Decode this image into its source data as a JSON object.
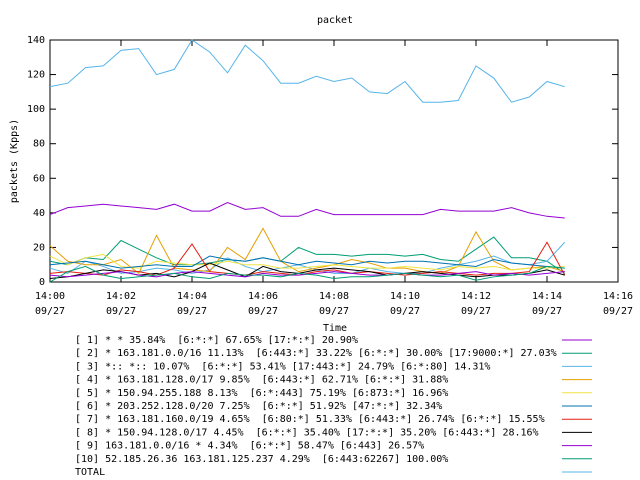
{
  "chart_data": {
    "type": "line",
    "title": "packet",
    "x_label": "Time",
    "y_label": "packets (Kpps)",
    "x": [
      0,
      0.5,
      1,
      1.5,
      2,
      2.5,
      3,
      3.5,
      4,
      4.5,
      5,
      5.5,
      6,
      6.5,
      7,
      7.5,
      8,
      8.5,
      9,
      9.5,
      10,
      10.5,
      11,
      11.5,
      12,
      12.5,
      13,
      13.5,
      14,
      14.5
    ],
    "xlim": [
      0,
      16
    ],
    "xticks": [
      {
        "value": 0,
        "label": "14:00\n09/27"
      },
      {
        "value": 2,
        "label": "14:02\n09/27"
      },
      {
        "value": 4,
        "label": "14:04\n09/27"
      },
      {
        "value": 6,
        "label": "14:06\n09/27"
      },
      {
        "value": 8,
        "label": "14:08\n09/27"
      },
      {
        "value": 10,
        "label": "14:10\n09/27"
      },
      {
        "value": 12,
        "label": "14:12\n09/27"
      },
      {
        "value": 14,
        "label": "14:14\n09/27"
      },
      {
        "value": 16,
        "label": "14:16\n09/27"
      }
    ],
    "ylim": [
      0,
      140
    ],
    "yticks": [
      0,
      20,
      40,
      60,
      80,
      100,
      120,
      140
    ],
    "series": [
      {
        "name": "[ 1] * * 35.84%  [6:*:*] 67.65% [17:*:*] 20.90%",
        "color": "#9400d3",
        "values": [
          39,
          43,
          44,
          45,
          44,
          43,
          42,
          45,
          41,
          41,
          46,
          42,
          43,
          38,
          38,
          42,
          39,
          39,
          39,
          39,
          39,
          39,
          42,
          41,
          41,
          41,
          43,
          40,
          38,
          37
        ]
      },
      {
        "name": "[ 2] * 163.181.0.0/16 11.13%  [6:443:*] 33.22% [6:*:*] 30.00% [17:9000:*] 27.03%",
        "color": "#009e73",
        "values": [
          12,
          10,
          14,
          13,
          24,
          19,
          14,
          10,
          10,
          11,
          13,
          12,
          14,
          12,
          20,
          16,
          16,
          15,
          16,
          16,
          15,
          16,
          13,
          12,
          19,
          26,
          14,
          14,
          12,
          5
        ]
      },
      {
        "name": "[ 3] *:: *:: 10.07%  [6:*:*] 53.41% [17:443:*] 24.79% [6:*:80] 14.31%",
        "color": "#56b4e9",
        "values": [
          8,
          5,
          12,
          9,
          5,
          6,
          8,
          7,
          5,
          7,
          14,
          9,
          6,
          8,
          10,
          7,
          5,
          5,
          8,
          6,
          5,
          5,
          8,
          10,
          12,
          15,
          11,
          10,
          12,
          23
        ]
      },
      {
        "name": "[ 4] * 163.181.128.0/17 9.85%  [6:443:*] 62.71% [6:*:*] 31.88%",
        "color": "#e69f00",
        "values": [
          21,
          12,
          10,
          10,
          13,
          5,
          27,
          8,
          7,
          6,
          20,
          13,
          31,
          12,
          6,
          8,
          10,
          13,
          11,
          8,
          8,
          6,
          5,
          9,
          29,
          12,
          7,
          8,
          9,
          6
        ]
      },
      {
        "name": "[ 5] * 150.94.255.188 8.13%  [6:*:443] 75.19% [6:873:*] 16.96%",
        "color": "#f0e442",
        "values": [
          15,
          10,
          14,
          16,
          9,
          8,
          12,
          11,
          10,
          10,
          12,
          10,
          10,
          8,
          8,
          9,
          10,
          9,
          8,
          8,
          9,
          8,
          7,
          9,
          8,
          9,
          7,
          8,
          8,
          9
        ]
      },
      {
        "name": "[ 6] * 203.252.128.0/20 7.25%  [6:*:*] 51.92% [47:*:*] 32.34%",
        "color": "#0072b2",
        "values": [
          10,
          11,
          12,
          10,
          8,
          9,
          10,
          9,
          9,
          15,
          13,
          12,
          14,
          12,
          10,
          12,
          11,
          10,
          12,
          11,
          12,
          12,
          11,
          10,
          9,
          13,
          11,
          10,
          9,
          8
        ]
      },
      {
        "name": "[ 7] * 163.181.160.0/19 4.65%  [6:80:*] 51.33% [6:443:*] 26.74% [6:*:*] 15.55%",
        "color": "#e51e10",
        "values": [
          5,
          6,
          5,
          4,
          7,
          6,
          4,
          8,
          22,
          6,
          5,
          4,
          6,
          5,
          4,
          6,
          7,
          5,
          6,
          5,
          4,
          5,
          6,
          5,
          4,
          5,
          5,
          6,
          23,
          4
        ]
      },
      {
        "name": "[ 8] * 150.94.128.0/17 4.45%  [6:*:*] 35.40% [17:*:*] 35.20% [6:443:*] 28.16%",
        "color": "#000000",
        "values": [
          2,
          3,
          5,
          7,
          6,
          4,
          5,
          3,
          6,
          11,
          7,
          3,
          9,
          6,
          5,
          7,
          8,
          7,
          6,
          4,
          5,
          6,
          5,
          4,
          3,
          4,
          4,
          5,
          7,
          4
        ]
      },
      {
        "name": "[ 9] 163.181.0.0/16 * 4.34%  [6:*:*] 58.47% [6:443] 26.57%",
        "color": "#9400d3",
        "values": [
          4,
          3,
          4,
          5,
          6,
          4,
          3,
          5,
          6,
          5,
          4,
          3,
          5,
          4,
          4,
          5,
          6,
          5,
          4,
          4,
          5,
          4,
          4,
          5,
          6,
          4,
          5,
          4,
          5,
          6
        ]
      },
      {
        "name": "[10] 52.185.26.36 163.181.125.237 4.29%  [6:443:62267] 100.00%",
        "color": "#009e73",
        "values": [
          0,
          6,
          9,
          4,
          2,
          3,
          4,
          5,
          3,
          2,
          5,
          4,
          4,
          3,
          5,
          4,
          2,
          3,
          3,
          4,
          5,
          4,
          3,
          4,
          1,
          3,
          4,
          5,
          9,
          8
        ]
      },
      {
        "name": "TOTAL",
        "color": "#56b4e9",
        "values": [
          113,
          115,
          124,
          125,
          134,
          135,
          120,
          123,
          140,
          133,
          121,
          137,
          128,
          115,
          115,
          119,
          116,
          118,
          110,
          109,
          116,
          104,
          104,
          105,
          125,
          118,
          104,
          107,
          116,
          113
        ]
      }
    ]
  }
}
